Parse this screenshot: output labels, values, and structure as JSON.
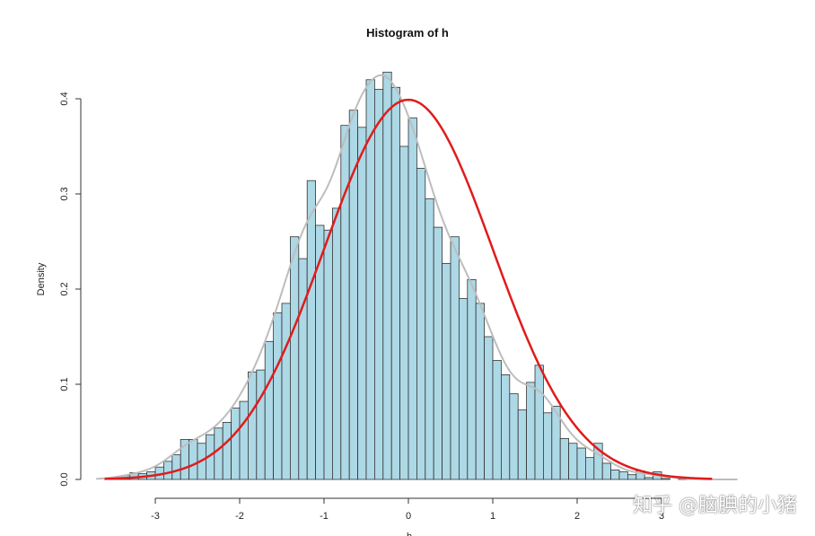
{
  "chart_data": {
    "type": "bar",
    "title": "Histogram of h",
    "xlabel": "h",
    "ylabel": "Density",
    "xlim": [
      -3.6,
      3.95
    ],
    "ylim": [
      0,
      0.43
    ],
    "x_ticks": [
      -3,
      -2,
      -1,
      0,
      1,
      2,
      3
    ],
    "y_ticks": [
      0.0,
      0.1,
      0.2,
      0.3,
      0.4
    ],
    "y_tick_labels": [
      "0.0",
      "0.1",
      "0.2",
      "0.3",
      "0.4"
    ],
    "bin_width": 0.1,
    "bin_start": -3.6,
    "values": [
      0.001,
      0.002,
      0.004,
      0.007,
      0.006,
      0.008,
      0.013,
      0.019,
      0.026,
      0.042,
      0.042,
      0.038,
      0.047,
      0.054,
      0.06,
      0.075,
      0.082,
      0.113,
      0.115,
      0.145,
      0.175,
      0.185,
      0.255,
      0.232,
      0.314,
      0.267,
      0.262,
      0.285,
      0.372,
      0.388,
      0.37,
      0.42,
      0.41,
      0.428,
      0.412,
      0.35,
      0.38,
      0.327,
      0.295,
      0.265,
      0.227,
      0.255,
      0.19,
      0.21,
      0.185,
      0.15,
      0.125,
      0.11,
      0.09,
      0.073,
      0.102,
      0.12,
      0.07,
      0.077,
      0.043,
      0.038,
      0.033,
      0.023,
      0.038,
      0.017,
      0.01,
      0.008,
      0.005,
      0.009,
      0.002,
      0.008,
      0.001,
      0.0,
      0.002,
      0.0
    ],
    "series": [
      {
        "kind": "normal-density",
        "mean": 0,
        "sd": 1,
        "color": "#e11b1b"
      },
      {
        "kind": "kernel-density",
        "color": "#bdbdbd"
      }
    ],
    "bar_color": "#add8e6",
    "bar_edge_color": "#333333"
  },
  "watermark": "知乎 @脑腆的小猪"
}
